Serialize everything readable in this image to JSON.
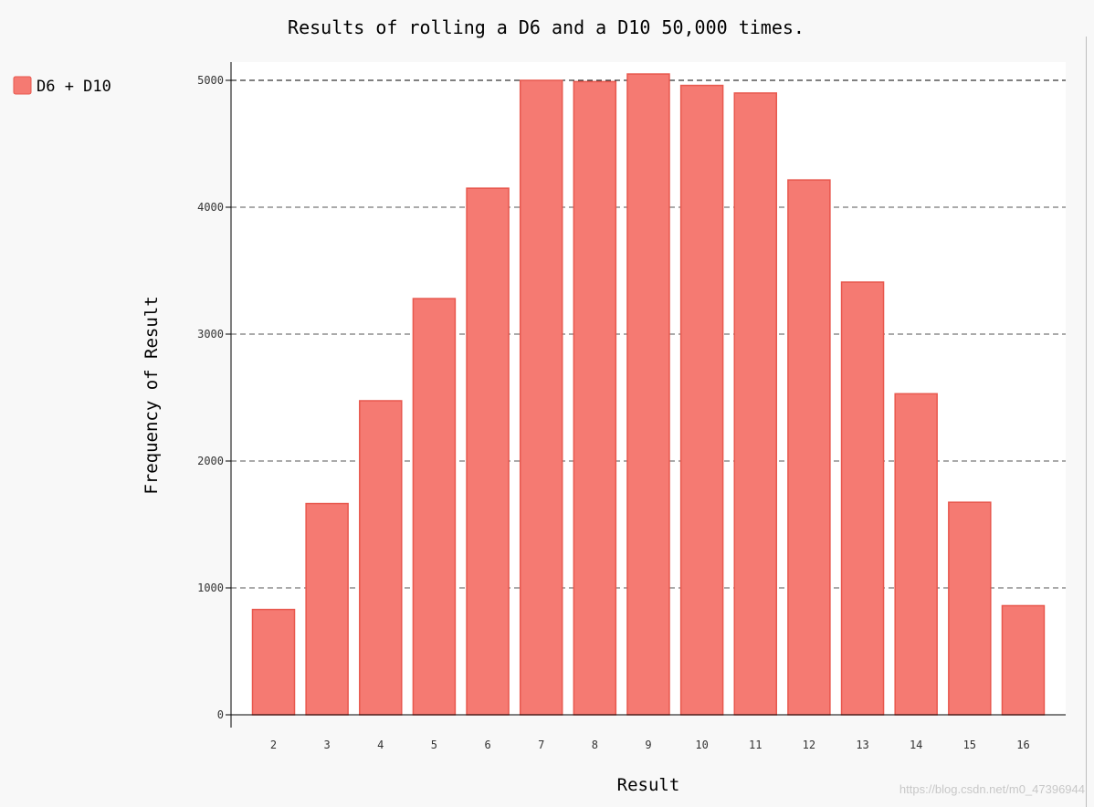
{
  "chart_data": {
    "type": "bar",
    "title": "Results of rolling a D6 and a D10 50,000 times.",
    "xlabel": "Result",
    "ylabel": "Frequency of Result",
    "categories": [
      "2",
      "3",
      "4",
      "5",
      "6",
      "7",
      "8",
      "9",
      "10",
      "11",
      "12",
      "13",
      "14",
      "15",
      "16"
    ],
    "series": [
      {
        "name": "D6 + D10",
        "values": [
          830,
          1665,
          2475,
          3280,
          4150,
          5000,
          4990,
          5050,
          4960,
          4900,
          4215,
          3410,
          2530,
          1675,
          860
        ]
      }
    ],
    "ylim": [
      0,
      5000
    ],
    "yticks": [
      0,
      1000,
      2000,
      3000,
      4000,
      5000
    ],
    "grid": "horizontal dashed",
    "legend_position": "top-left",
    "bar_color": "#f57a72",
    "bar_edge_color": "#e8584e"
  },
  "watermark": "https://blog.csdn.net/m0_47396944"
}
